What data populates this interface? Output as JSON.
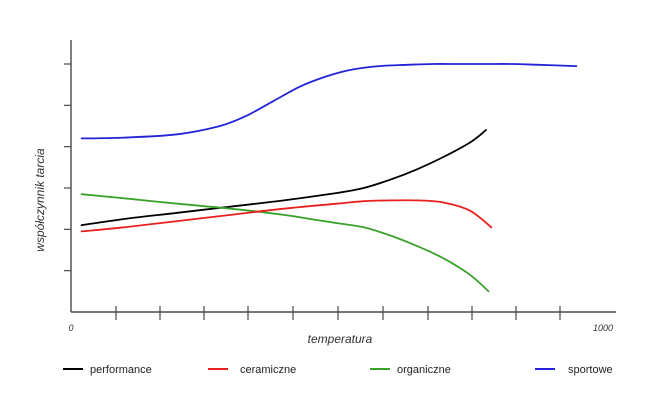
{
  "chart_data": {
    "type": "line",
    "title": "",
    "xlabel": "temperatura",
    "ylabel": "współczynnik tarcia",
    "xlim": [
      0,
      1000
    ],
    "ylim": [
      0,
      6
    ],
    "x_tick_labels": [
      "0",
      "1000"
    ],
    "grid": false,
    "legend_position": "bottom",
    "series": [
      {
        "name": "performance",
        "color": "#000000",
        "x": [
          20,
          100,
          200,
          300,
          400,
          500,
          550,
          600,
          650,
          700,
          750,
          780
        ],
        "y": [
          2.1,
          2.25,
          2.4,
          2.55,
          2.7,
          2.88,
          3.0,
          3.2,
          3.45,
          3.75,
          4.1,
          4.4
        ]
      },
      {
        "name": "ceramiczne",
        "color": "#e8201e",
        "x": [
          20,
          100,
          200,
          300,
          400,
          500,
          550,
          600,
          650,
          700,
          750,
          790
        ],
        "y": [
          1.95,
          2.05,
          2.2,
          2.35,
          2.5,
          2.62,
          2.68,
          2.7,
          2.7,
          2.65,
          2.45,
          2.05
        ]
      },
      {
        "name": "organiczne",
        "color": "#3aa12b",
        "x": [
          20,
          100,
          200,
          300,
          400,
          450,
          500,
          550,
          600,
          650,
          700,
          750,
          785
        ],
        "y": [
          2.85,
          2.75,
          2.62,
          2.5,
          2.35,
          2.25,
          2.15,
          2.05,
          1.85,
          1.6,
          1.3,
          0.9,
          0.5
        ]
      },
      {
        "name": "sportowe",
        "color": "#2323d8",
        "x": [
          20,
          100,
          200,
          280,
          330,
          380,
          430,
          480,
          530,
          580,
          630,
          680,
          730,
          780,
          830,
          880,
          950
        ],
        "y": [
          4.2,
          4.22,
          4.3,
          4.5,
          4.75,
          5.1,
          5.45,
          5.7,
          5.87,
          5.95,
          5.98,
          6.0,
          6.0,
          6.0,
          6.0,
          5.98,
          5.95
        ]
      }
    ]
  }
}
